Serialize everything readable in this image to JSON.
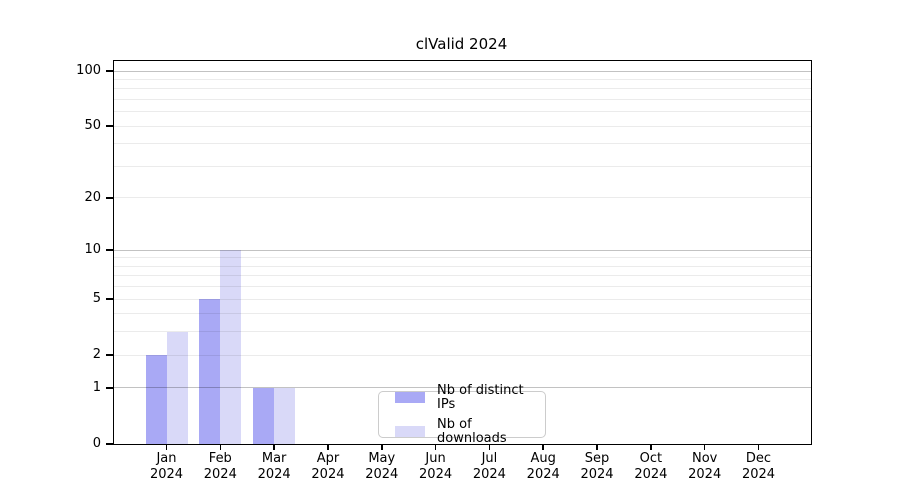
{
  "chart_data": {
    "type": "bar",
    "title": "clValid 2024",
    "categories": [
      "Jan",
      "Feb",
      "Mar",
      "Apr",
      "May",
      "Jun",
      "Jul",
      "Aug",
      "Sep",
      "Oct",
      "Nov",
      "Dec"
    ],
    "x_year": "2024",
    "series": [
      {
        "name": "Nb of distinct IPs",
        "color": "#a9a9f5",
        "values": [
          2,
          5,
          1,
          0,
          0,
          0,
          0,
          0,
          0,
          0,
          0,
          0
        ]
      },
      {
        "name": "Nb of downloads",
        "color": "#d9d9f8",
        "values": [
          3,
          10,
          1,
          0,
          0,
          0,
          0,
          0,
          0,
          0,
          0,
          0
        ]
      }
    ],
    "y_ticks": [
      0,
      1,
      2,
      5,
      10,
      20,
      50,
      100
    ],
    "y_scale": "log10(1+x)",
    "ylim": [
      0,
      100
    ],
    "grid": {
      "major_values": [
        1,
        10,
        100
      ],
      "minor_values": [
        2,
        3,
        4,
        5,
        6,
        7,
        8,
        9,
        20,
        30,
        40,
        50,
        60,
        70,
        80,
        90
      ],
      "major_color": "rgba(0,0,0,0.24)",
      "minor_color": "rgba(0,0,0,0.08)"
    },
    "legend_position": "lower center",
    "background_color": "#ffffff",
    "axis_color": "#000000"
  }
}
